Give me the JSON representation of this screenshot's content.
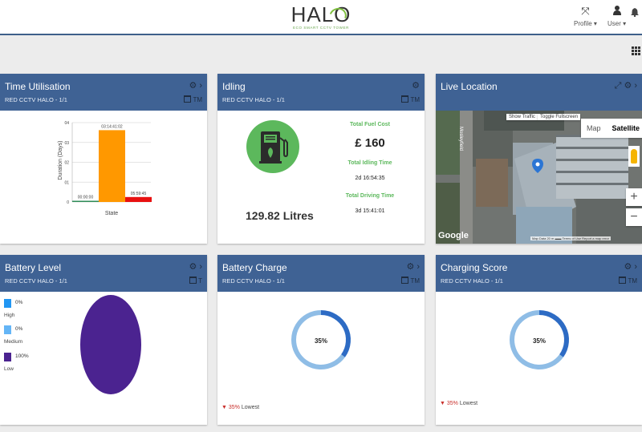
{
  "header": {
    "logo_text": "HAL",
    "logo_o": "O",
    "logo_tagline": "ECO SMART CCTV TOWER",
    "profile_label": "Profile ▾",
    "user_label": "User ▾",
    "profile_icon": "profile-cross-icon",
    "user_icon": "user-icon",
    "bell_icon": "bell-icon"
  },
  "panels": {
    "time_utilisation": {
      "title": "Time Utilisation",
      "subtitle": "RED CCTV HALO - 1/1",
      "tm": "TM"
    },
    "idling": {
      "title": "Idling",
      "subtitle": "RED CCTV HALO - 1/1",
      "tm": "TM",
      "total_fuel_cost_label": "Total Fuel Cost",
      "total_fuel_cost": "£ 160",
      "total_idling_time_label": "Total Idling Time",
      "total_idling_time": "2d 16:54:35",
      "total_driving_time_label": "Total Driving Time",
      "total_driving_time": "3d 15:41:01",
      "litres": "129.82 Litres"
    },
    "live_location": {
      "title": "Live Location",
      "show_traffic": "Show Traffic",
      "toggle_fullscreen": "Toggle Fullscreen",
      "map_label": "Map",
      "satellite_label": "Satellite",
      "zoom_in": "+",
      "zoom_out": "−",
      "google": "Google",
      "road_label": "Mosleyfield",
      "footer": "Map Data   20 m ▬▬   Terms of Use   Report a map error"
    },
    "battery_level": {
      "title": "Battery Level",
      "subtitle": "RED CCTV HALO - 1/1",
      "legend": [
        {
          "pct": "0%",
          "name": "High",
          "color": "#2196f3"
        },
        {
          "pct": "0%",
          "name": "Medium",
          "color": "#64b5f6"
        },
        {
          "pct": "100%",
          "name": "Low",
          "color": "#4b2390"
        }
      ],
      "tm": "T"
    },
    "battery_charge": {
      "title": "Battery Charge",
      "subtitle": "RED CCTV HALO - 1/1",
      "tm": "TM",
      "percent": "35%",
      "lowest_pct": "35%",
      "lowest_label": "Lowest"
    },
    "charging_score": {
      "title": "Charging Score",
      "subtitle": "RED CCTV HALO - 1/1",
      "tm": "TM",
      "percent": "35%",
      "lowest_pct": "35%",
      "lowest_label": "Lowest"
    }
  },
  "chart_data": [
    {
      "type": "bar",
      "ylabel": "Duration (Days)",
      "xlabel": "State",
      "categories": [
        "",
        "",
        ""
      ],
      "values": [
        0.0,
        3.62,
        0.25
      ],
      "data_labels": [
        "00:00:00",
        "03:14:41:02",
        "05:59:45"
      ],
      "colors": [
        "#2e8b57",
        "#ff9800",
        "#e81010"
      ],
      "ylim": [
        0,
        4
      ],
      "yticks": [
        "0",
        "01",
        "02",
        "03",
        "04"
      ],
      "grid": true
    },
    {
      "type": "pie",
      "categories": [
        "High",
        "Medium",
        "Low"
      ],
      "values": [
        0,
        0,
        100
      ],
      "colors": [
        "#2196f3",
        "#64b5f6",
        "#4b2390"
      ]
    },
    {
      "type": "pie",
      "categories": [
        "Charged",
        "Remaining"
      ],
      "values": [
        35,
        65
      ],
      "colors": [
        "#2d6bc4",
        "#8fbde6"
      ]
    },
    {
      "type": "pie",
      "categories": [
        "Score",
        "Remaining"
      ],
      "values": [
        35,
        65
      ],
      "colors": [
        "#2d6bc4",
        "#8fbde6"
      ]
    }
  ]
}
